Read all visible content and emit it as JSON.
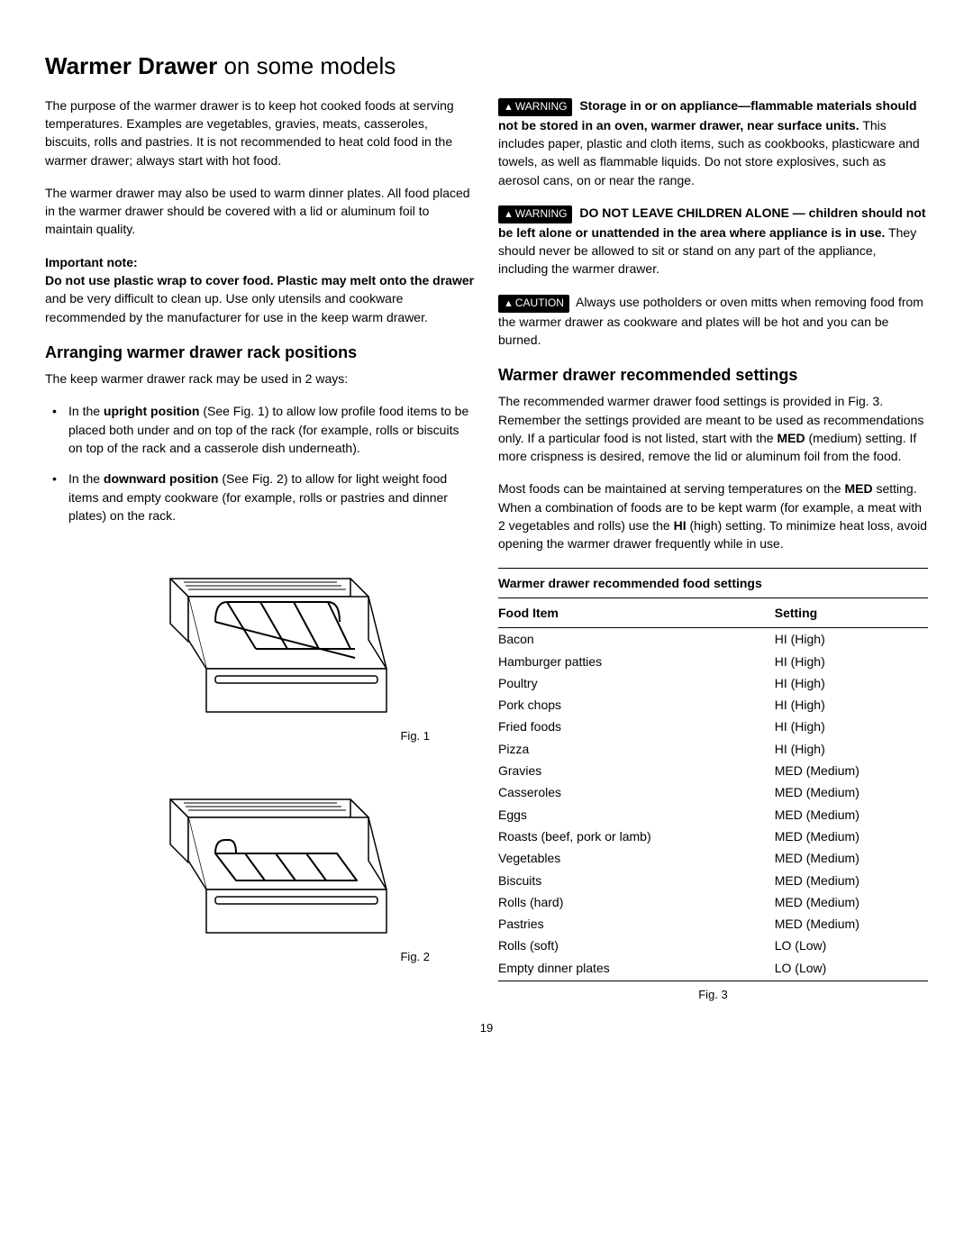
{
  "title_bold": "Warmer Drawer",
  "title_light": " on some models",
  "page_number": "19",
  "left": {
    "p1": "The purpose of the warmer drawer is to keep hot cooked foods at serving temperatures. Examples are vegetables, gravies, meats, casseroles, biscuits, rolls and pastries. It is not recommended to heat cold food in the warmer drawer; always start with hot food.",
    "p2": "The warmer drawer may also be used to warm dinner plates. All food placed in the warmer drawer should be covered with a lid or aluminum foil to maintain quality.",
    "note_label": "Important note:",
    "note_bold": "Do not use plastic wrap to cover food. Plastic may melt onto the drawer",
    "note_rest": " and be very difficult to clean up. Use only utensils and cookware recommended by the manufacturer for use in the keep warm drawer.",
    "h2": "Arranging warmer drawer rack positions",
    "p3": "The keep warmer drawer rack may be used in 2 ways:",
    "bullet1_pre": "In the ",
    "bullet1_b": "upright position",
    "bullet1_post": " (See Fig. 1) to allow low profile food items to be placed both under and on top of the rack (for example, rolls or biscuits on top of the rack and a casserole dish underneath).",
    "bullet2_pre": "In the ",
    "bullet2_b": "downward position",
    "bullet2_post": " (See Fig. 2) to allow for light weight food items and empty cookware (for example, rolls or pastries and dinner plates) on the rack.",
    "fig1_caption": "Fig. 1",
    "fig2_caption": "Fig. 2"
  },
  "right": {
    "warn1_label": "WARNING",
    "warn1_bold": "Storage in or on appliance—flammable materials should not be stored in an oven, warmer drawer, near surface units.",
    "warn1_rest": " This includes paper, plastic and cloth items, such as cookbooks, plasticware and towels, as well as flammable liquids. Do not store explosives, such as aerosol cans, on or near the range.",
    "warn2_label": "WARNING",
    "warn2_bold": "DO NOT LEAVE CHILDREN ALONE — children should not be left alone or unattended in the area where appliance is in use.",
    "warn2_rest": " They should never be allowed to sit or stand on any part of the appliance, including the warmer drawer.",
    "caution_label": "CAUTION",
    "caution_text": " Always use potholders or oven mitts when removing food from the warmer drawer as cookware and plates will be hot and you can be burned.",
    "h2": "Warmer drawer recommended settings",
    "p1_a": "The recommended warmer drawer food settings is provided in Fig. 3. Remember the settings provided are meant to be used as recommendations only. If a particular food is not listed, start with the ",
    "p1_med": "MED",
    "p1_b": " (medium) setting. If more crispness is desired, remove the lid or aluminum foil from the food.",
    "p2_a": "Most foods can be maintained at serving temperatures on the ",
    "p2_med": "MED",
    "p2_b": " setting. When a combination of foods are to be kept warm (for example, a meat with 2 vegetables and rolls) use the ",
    "p2_hi": "HI",
    "p2_c": " (high) setting. To minimize heat loss, avoid opening the warmer drawer frequently while in use.",
    "table_title": "Warmer drawer recommended food settings",
    "col_food": "Food Item",
    "col_setting": "Setting",
    "rows": [
      {
        "f": "Bacon",
        "s": "HI (High)"
      },
      {
        "f": "Hamburger patties",
        "s": "HI (High)"
      },
      {
        "f": "Poultry",
        "s": "HI (High)"
      },
      {
        "f": "Pork chops",
        "s": "HI (High)"
      },
      {
        "f": "Fried foods",
        "s": "HI (High)"
      },
      {
        "f": "Pizza",
        "s": "HI (High)"
      },
      {
        "f": "Gravies",
        "s": "MED (Medium)"
      },
      {
        "f": "Casseroles",
        "s": "MED (Medium)"
      },
      {
        "f": "Eggs",
        "s": "MED (Medium)"
      },
      {
        "f": "Roasts (beef, pork or lamb)",
        "s": "MED (Medium)"
      },
      {
        "f": "Vegetables",
        "s": "MED (Medium)"
      },
      {
        "f": "Biscuits",
        "s": "MED (Medium)"
      },
      {
        "f": "Rolls (hard)",
        "s": "MED (Medium)"
      },
      {
        "f": "Pastries",
        "s": "MED (Medium)"
      },
      {
        "f": "Rolls (soft)",
        "s": "LO (Low)"
      },
      {
        "f": "Empty dinner plates",
        "s": "LO (Low)"
      }
    ],
    "fig3_caption": "Fig. 3"
  },
  "svg": {
    "stroke": "#000",
    "fill": "#fff"
  }
}
